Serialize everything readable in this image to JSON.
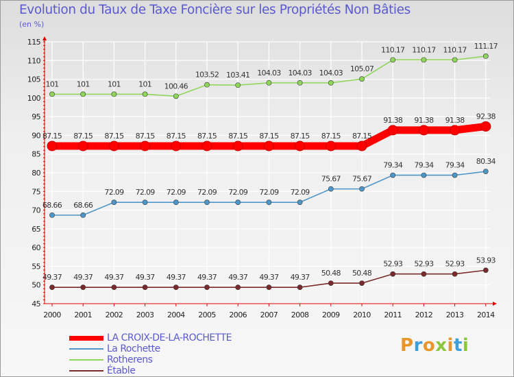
{
  "title": "Evolution du Taux de Taxe Foncière sur les Propriétés Non Bâties",
  "unit": "(en %)",
  "brand": "Proxiti",
  "colors": {
    "LA CROIX-DE-LA-ROCHETTE": "#ff0000",
    "La Rochette": "#4f96c8",
    "Rotherens": "#8fd65a",
    "Étable": "#7a2a2a",
    "axis": "#e10000",
    "grid": "#ffffff",
    "brand_letters": [
      "#e8962c",
      "#3e9fd8",
      "#e8962c",
      "#8cc640",
      "#e8962c",
      "#3e9fd8",
      "#8cc640"
    ]
  },
  "chart_data": {
    "type": "line",
    "title": "Evolution du Taux de Taxe Foncière sur les Propriétés Non Bâties",
    "ylabel": "(en %)",
    "xlabel": "",
    "x": [
      "2000",
      "2001",
      "2002",
      "2003",
      "2004",
      "2005",
      "2006",
      "2007",
      "2008",
      "2009",
      "2010",
      "2011",
      "2012",
      "2013",
      "2014"
    ],
    "ylim": [
      45,
      115
    ],
    "yticks": [
      45,
      50,
      55,
      60,
      65,
      70,
      75,
      80,
      85,
      90,
      95,
      100,
      105,
      110,
      115
    ],
    "grid": true,
    "legend_position": "bottom-left",
    "series": [
      {
        "name": "LA CROIX-DE-LA-ROCHETTE",
        "values": [
          87.15,
          87.15,
          87.15,
          87.15,
          87.15,
          87.15,
          87.15,
          87.15,
          87.15,
          87.15,
          87.15,
          91.38,
          91.38,
          91.38,
          92.38
        ],
        "labels": [
          "87.15",
          "87.15",
          "87.15",
          "87.15",
          "87.15",
          "87.15",
          "87.15",
          "87.15",
          "87.15",
          "87.15",
          "87.15",
          "91.38",
          "91.38",
          "91.38",
          "92.38"
        ]
      },
      {
        "name": "La Rochette",
        "values": [
          68.66,
          68.66,
          72.09,
          72.09,
          72.09,
          72.09,
          72.09,
          72.09,
          72.09,
          75.67,
          75.67,
          79.34,
          79.34,
          79.34,
          80.34
        ],
        "labels": [
          "68.66",
          "68.66",
          "72.09",
          "72.09",
          "72.09",
          "72.09",
          "72.09",
          "72.09",
          "72.09",
          "75.67",
          "75.67",
          "79.34",
          "79.34",
          "79.34",
          "80.34"
        ]
      },
      {
        "name": "Rotherens",
        "values": [
          101,
          101,
          101,
          101,
          100.46,
          103.52,
          103.41,
          104.03,
          104.03,
          104.03,
          105.07,
          110.17,
          110.17,
          110.17,
          111.17
        ],
        "labels": [
          "101",
          "101",
          "101",
          "101",
          "100.46",
          "103.52",
          "103.41",
          "104.03",
          "104.03",
          "104.03",
          "105.07",
          "110.17",
          "110.17",
          "110.17",
          "111.17"
        ]
      },
      {
        "name": "Étable",
        "values": [
          49.37,
          49.37,
          49.37,
          49.37,
          49.37,
          49.37,
          49.37,
          49.37,
          49.37,
          50.48,
          50.48,
          52.93,
          52.93,
          52.93,
          53.93
        ],
        "labels": [
          "49.37",
          "49.37",
          "49.37",
          "49.37",
          "49.37",
          "49.37",
          "49.37",
          "49.37",
          "49.37",
          "50.48",
          "50.48",
          "52.93",
          "52.93",
          "52.93",
          "53.93"
        ]
      }
    ]
  }
}
